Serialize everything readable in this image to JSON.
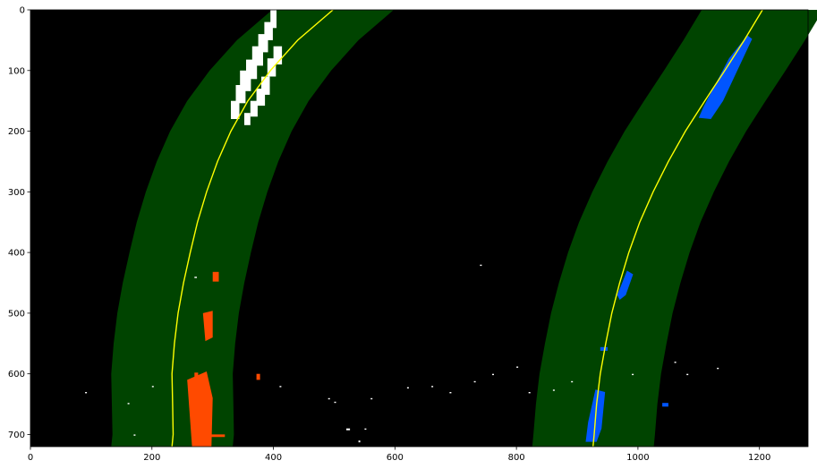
{
  "figure": {
    "image_size": {
      "width": 1280,
      "height": 720
    },
    "axes": {
      "x_ticks": [
        0,
        200,
        400,
        600,
        800,
        1000,
        1200
      ],
      "y_ticks": [
        0,
        100,
        200,
        300,
        400,
        500,
        600,
        700
      ],
      "xlim": [
        0,
        1280
      ],
      "ylim": [
        720,
        0
      ]
    },
    "colors": {
      "background": "#000000",
      "lane_band": "#004400",
      "fit_line": "#ffff00",
      "left_pixels": "#ff4a00",
      "right_pixels": "#0055ff",
      "noise": "#ffffff"
    },
    "lanes": {
      "band_half_width": 100,
      "left_fit": [
        [
          0,
          498
        ],
        [
          50,
          440
        ],
        [
          100,
          395
        ],
        [
          150,
          358
        ],
        [
          200,
          330
        ],
        [
          250,
          308
        ],
        [
          300,
          290
        ],
        [
          350,
          275
        ],
        [
          400,
          263
        ],
        [
          450,
          252
        ],
        [
          500,
          243
        ],
        [
          550,
          237
        ],
        [
          600,
          233
        ],
        [
          650,
          234
        ],
        [
          700,
          235
        ],
        [
          720,
          233
        ]
      ],
      "right_fit": [
        [
          0,
          1205
        ],
        [
          50,
          1175
        ],
        [
          100,
          1143
        ],
        [
          150,
          1110
        ],
        [
          200,
          1078
        ],
        [
          250,
          1050
        ],
        [
          300,
          1025
        ],
        [
          350,
          1003
        ],
        [
          400,
          985
        ],
        [
          450,
          970
        ],
        [
          500,
          957
        ],
        [
          550,
          947
        ],
        [
          600,
          938
        ],
        [
          650,
          932
        ],
        [
          700,
          928
        ],
        [
          720,
          926
        ]
      ]
    }
  }
}
